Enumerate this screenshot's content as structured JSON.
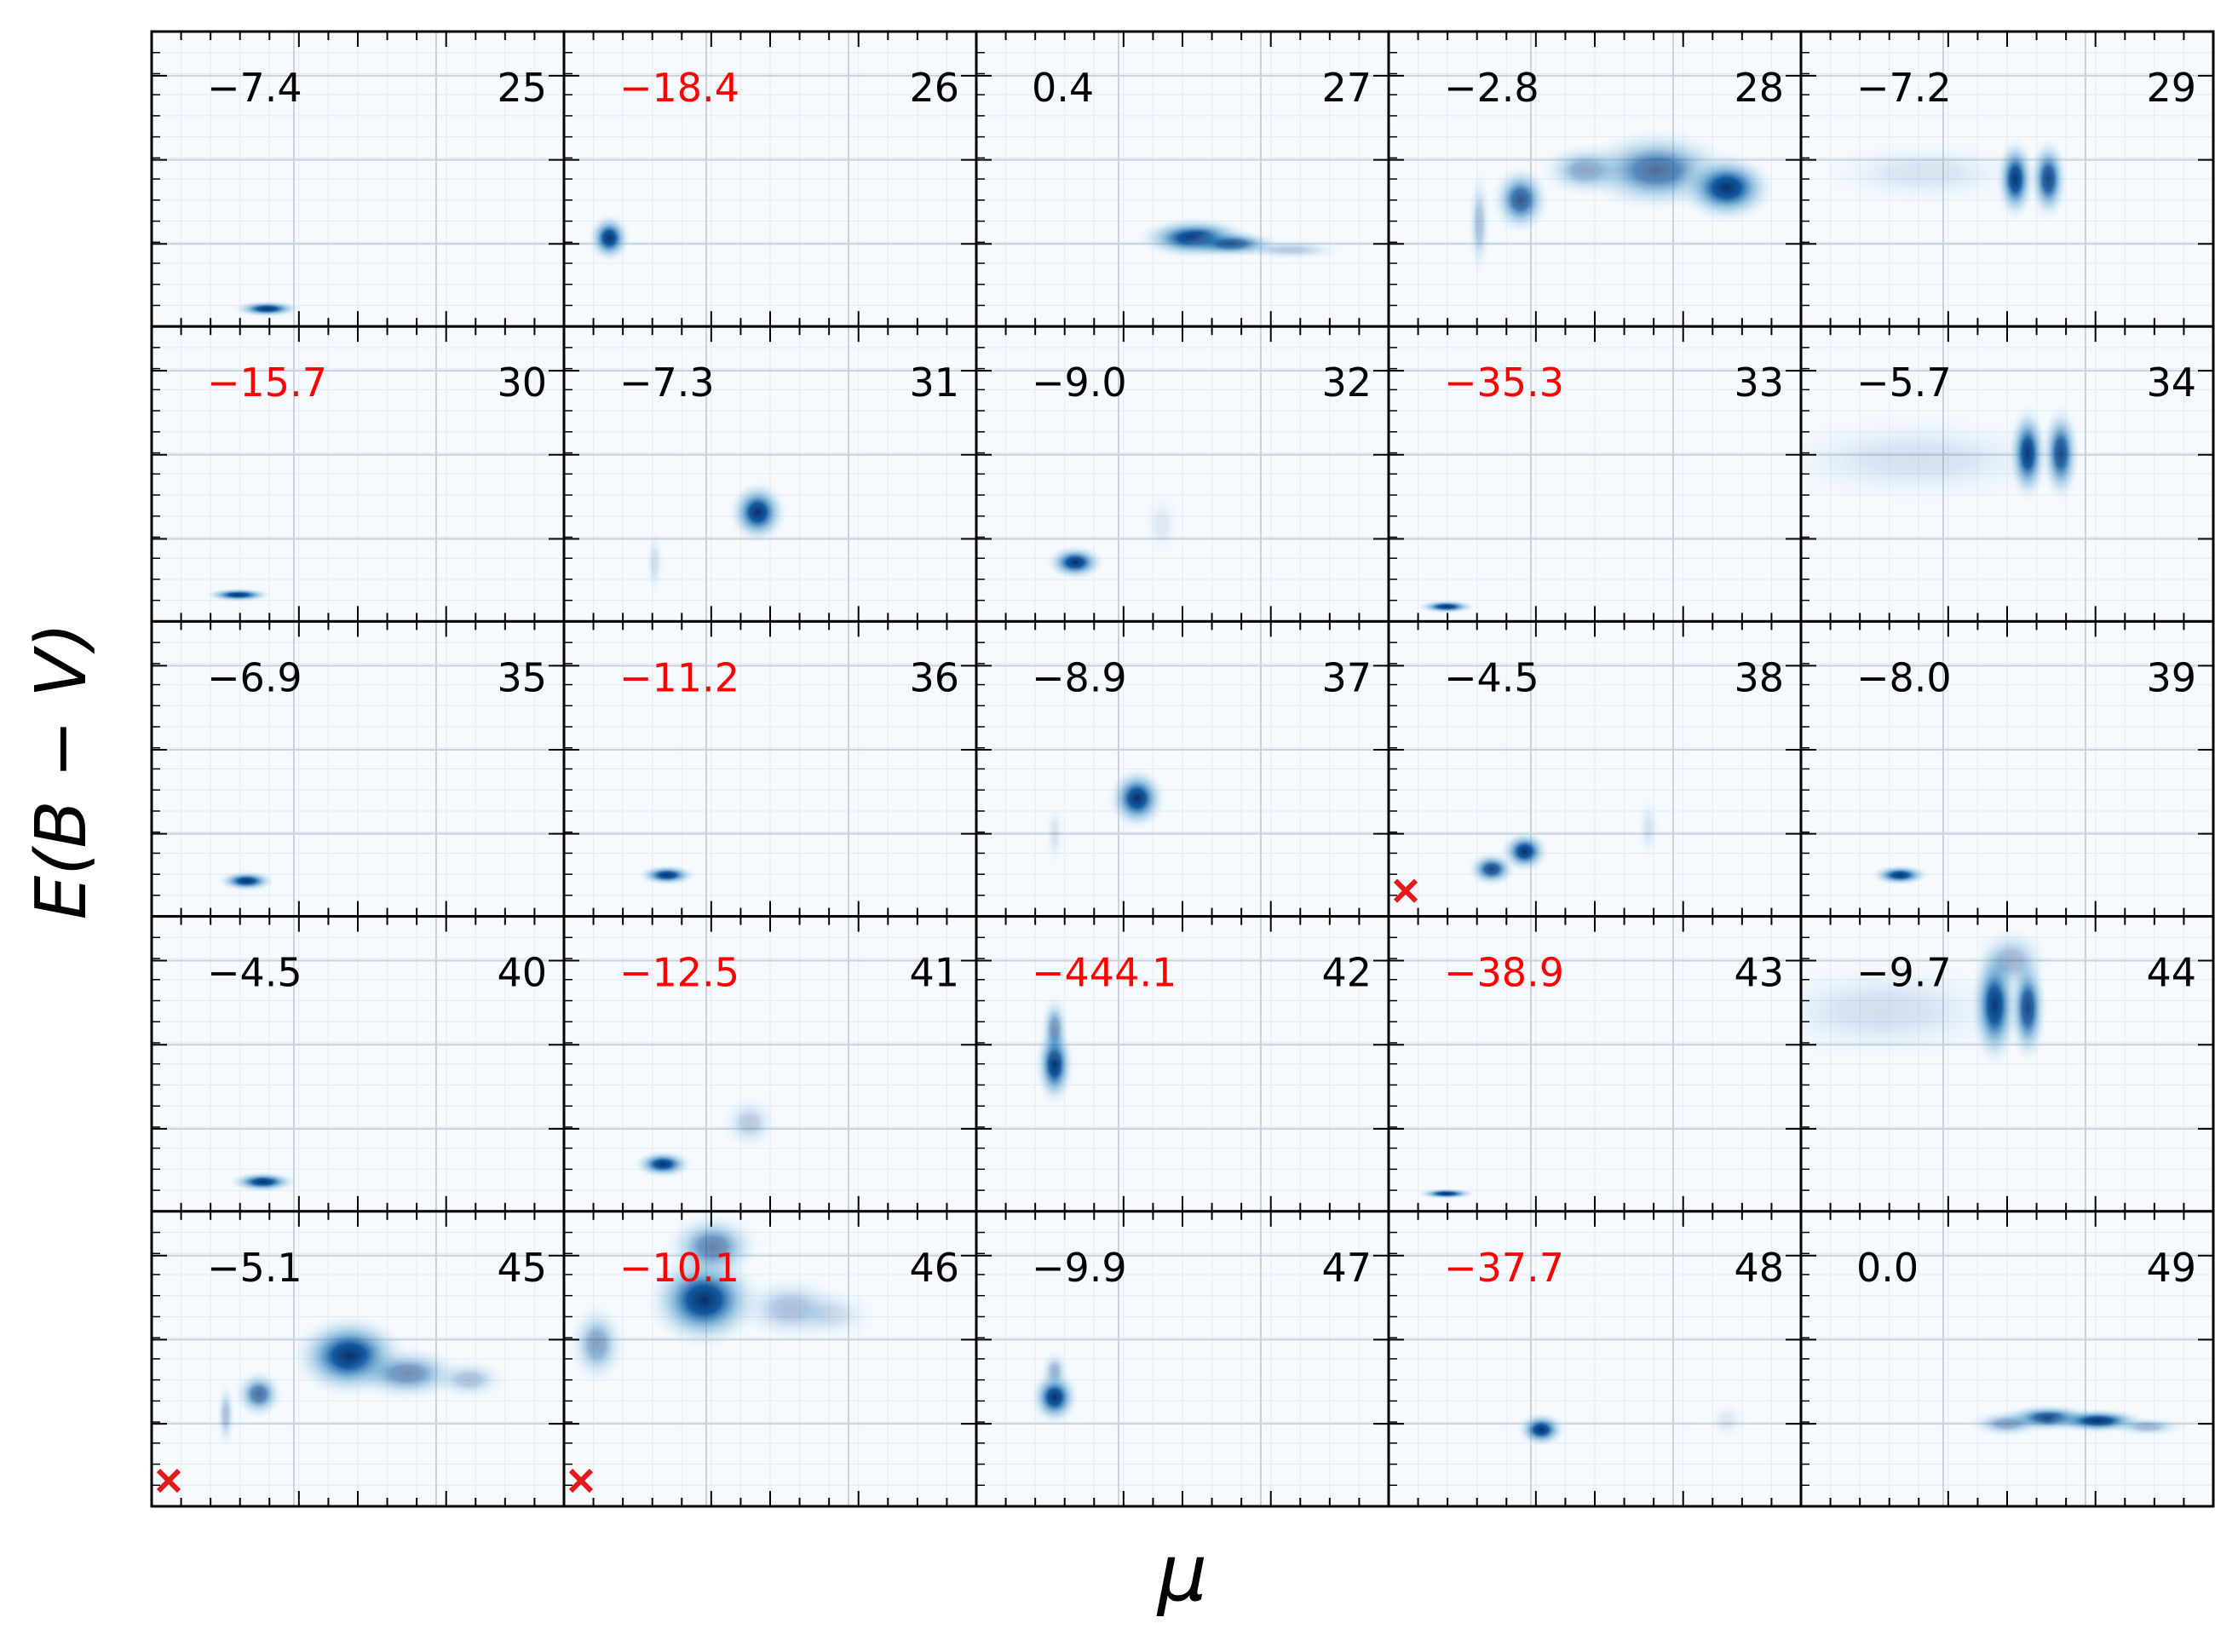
{
  "chart_data": {
    "type": "heatmap",
    "title": "",
    "xlabel": "μ",
    "ylabel": "E(B − V)",
    "grid": true,
    "colormap": "Blues",
    "colors": {
      "normal_value": "#000000",
      "flagged_value": "#ff0000",
      "marker": "#e31a1c"
    },
    "panels": [
      {
        "id": "25",
        "value": "−7.4",
        "flagged": false,
        "marker": false,
        "blobs": [
          {
            "x": 0.28,
            "y": 0.06,
            "sx": 0.035,
            "sy": 0.012,
            "w": 1.0
          }
        ]
      },
      {
        "id": "26",
        "value": "−18.4",
        "flagged": true,
        "marker": false,
        "blobs": [
          {
            "x": 0.11,
            "y": 0.3,
            "sx": 0.022,
            "sy": 0.035,
            "w": 1.0
          }
        ]
      },
      {
        "id": "27",
        "value": "0.4",
        "flagged": false,
        "marker": false,
        "blobs": [
          {
            "x": 0.53,
            "y": 0.3,
            "sx": 0.06,
            "sy": 0.03,
            "w": 1.0
          },
          {
            "x": 0.62,
            "y": 0.28,
            "sx": 0.05,
            "sy": 0.02,
            "w": 0.8
          },
          {
            "x": 0.76,
            "y": 0.26,
            "sx": 0.06,
            "sy": 0.015,
            "w": 0.25
          }
        ]
      },
      {
        "id": "28",
        "value": "−2.8",
        "flagged": false,
        "marker": false,
        "blobs": [
          {
            "x": 0.32,
            "y": 0.43,
            "sx": 0.03,
            "sy": 0.05,
            "w": 0.8
          },
          {
            "x": 0.48,
            "y": 0.53,
            "sx": 0.05,
            "sy": 0.04,
            "w": 0.45
          },
          {
            "x": 0.65,
            "y": 0.53,
            "sx": 0.08,
            "sy": 0.06,
            "w": 0.7
          },
          {
            "x": 0.82,
            "y": 0.47,
            "sx": 0.05,
            "sy": 0.05,
            "w": 1.0
          },
          {
            "x": 0.22,
            "y": 0.35,
            "sx": 0.012,
            "sy": 0.08,
            "w": 0.3
          }
        ]
      },
      {
        "id": "29",
        "value": "−7.2",
        "flagged": false,
        "marker": false,
        "blobs": [
          {
            "x": 0.52,
            "y": 0.5,
            "sx": 0.02,
            "sy": 0.06,
            "w": 1.0
          },
          {
            "x": 0.6,
            "y": 0.5,
            "sx": 0.02,
            "sy": 0.06,
            "w": 0.9
          },
          {
            "x": 0.3,
            "y": 0.52,
            "sx": 0.12,
            "sy": 0.05,
            "w": 0.12
          }
        ]
      },
      {
        "id": "30",
        "value": "−15.7",
        "flagged": true,
        "marker": false,
        "blobs": [
          {
            "x": 0.21,
            "y": 0.09,
            "sx": 0.035,
            "sy": 0.01,
            "w": 1.0
          }
        ]
      },
      {
        "id": "31",
        "value": "−7.3",
        "flagged": false,
        "marker": false,
        "blobs": [
          {
            "x": 0.47,
            "y": 0.37,
            "sx": 0.03,
            "sy": 0.045,
            "w": 1.0
          },
          {
            "x": 0.22,
            "y": 0.2,
            "sx": 0.01,
            "sy": 0.05,
            "w": 0.15
          }
        ]
      },
      {
        "id": "32",
        "value": "−9.0",
        "flagged": false,
        "marker": false,
        "blobs": [
          {
            "x": 0.24,
            "y": 0.2,
            "sx": 0.03,
            "sy": 0.025,
            "w": 1.0
          },
          {
            "x": 0.45,
            "y": 0.33,
            "sx": 0.02,
            "sy": 0.05,
            "w": 0.1
          }
        ]
      },
      {
        "id": "33",
        "value": "−35.3",
        "flagged": true,
        "marker": false,
        "blobs": [
          {
            "x": 0.14,
            "y": 0.05,
            "sx": 0.03,
            "sy": 0.01,
            "w": 1.0
          }
        ]
      },
      {
        "id": "34",
        "value": "−5.7",
        "flagged": false,
        "marker": false,
        "blobs": [
          {
            "x": 0.55,
            "y": 0.57,
            "sx": 0.02,
            "sy": 0.07,
            "w": 1.0
          },
          {
            "x": 0.63,
            "y": 0.57,
            "sx": 0.02,
            "sy": 0.07,
            "w": 0.9
          },
          {
            "x": 0.28,
            "y": 0.55,
            "sx": 0.18,
            "sy": 0.07,
            "w": 0.13
          }
        ]
      },
      {
        "id": "35",
        "value": "−6.9",
        "flagged": false,
        "marker": false,
        "blobs": [
          {
            "x": 0.23,
            "y": 0.12,
            "sx": 0.03,
            "sy": 0.015,
            "w": 1.0
          }
        ]
      },
      {
        "id": "36",
        "value": "−11.2",
        "flagged": true,
        "marker": false,
        "blobs": [
          {
            "x": 0.25,
            "y": 0.14,
            "sx": 0.03,
            "sy": 0.015,
            "w": 1.0
          }
        ]
      },
      {
        "id": "37",
        "value": "−8.9",
        "flagged": false,
        "marker": false,
        "blobs": [
          {
            "x": 0.39,
            "y": 0.4,
            "sx": 0.03,
            "sy": 0.045,
            "w": 1.0
          },
          {
            "x": 0.19,
            "y": 0.28,
            "sx": 0.01,
            "sy": 0.05,
            "w": 0.12
          }
        ]
      },
      {
        "id": "38",
        "value": "−4.5",
        "flagged": false,
        "marker": true,
        "blobs": [
          {
            "x": 0.25,
            "y": 0.16,
            "sx": 0.025,
            "sy": 0.025,
            "w": 0.9
          },
          {
            "x": 0.33,
            "y": 0.22,
            "sx": 0.025,
            "sy": 0.03,
            "w": 1.0
          },
          {
            "x": 0.63,
            "y": 0.3,
            "sx": 0.012,
            "sy": 0.05,
            "w": 0.12
          }
        ]
      },
      {
        "id": "39",
        "value": "−8.0",
        "flagged": false,
        "marker": false,
        "blobs": [
          {
            "x": 0.24,
            "y": 0.14,
            "sx": 0.03,
            "sy": 0.015,
            "w": 1.0
          }
        ]
      },
      {
        "id": "40",
        "value": "−4.5",
        "flagged": false,
        "marker": false,
        "blobs": [
          {
            "x": 0.27,
            "y": 0.1,
            "sx": 0.035,
            "sy": 0.015,
            "w": 1.0
          }
        ]
      },
      {
        "id": "41",
        "value": "−12.5",
        "flagged": true,
        "marker": false,
        "blobs": [
          {
            "x": 0.24,
            "y": 0.16,
            "sx": 0.03,
            "sy": 0.02,
            "w": 1.0
          },
          {
            "x": 0.45,
            "y": 0.3,
            "sx": 0.03,
            "sy": 0.04,
            "w": 0.25
          }
        ]
      },
      {
        "id": "42",
        "value": "−444.1",
        "flagged": true,
        "marker": false,
        "blobs": [
          {
            "x": 0.19,
            "y": 0.5,
            "sx": 0.02,
            "sy": 0.06,
            "w": 1.0
          },
          {
            "x": 0.19,
            "y": 0.62,
            "sx": 0.015,
            "sy": 0.05,
            "w": 0.5
          }
        ]
      },
      {
        "id": "43",
        "value": "−38.9",
        "flagged": true,
        "marker": false,
        "blobs": [
          {
            "x": 0.14,
            "y": 0.06,
            "sx": 0.03,
            "sy": 0.008,
            "w": 1.0
          }
        ]
      },
      {
        "id": "44",
        "value": "−9.7",
        "flagged": false,
        "marker": false,
        "blobs": [
          {
            "x": 0.47,
            "y": 0.7,
            "sx": 0.025,
            "sy": 0.09,
            "w": 1.0
          },
          {
            "x": 0.55,
            "y": 0.69,
            "sx": 0.02,
            "sy": 0.08,
            "w": 0.9
          },
          {
            "x": 0.2,
            "y": 0.68,
            "sx": 0.16,
            "sy": 0.08,
            "w": 0.14
          },
          {
            "x": 0.51,
            "y": 0.85,
            "sx": 0.04,
            "sy": 0.05,
            "w": 0.35
          }
        ]
      },
      {
        "id": "45",
        "value": "−5.1",
        "flagged": false,
        "marker": true,
        "blobs": [
          {
            "x": 0.26,
            "y": 0.38,
            "sx": 0.025,
            "sy": 0.035,
            "w": 0.7
          },
          {
            "x": 0.48,
            "y": 0.51,
            "sx": 0.06,
            "sy": 0.06,
            "w": 1.0
          },
          {
            "x": 0.62,
            "y": 0.45,
            "sx": 0.06,
            "sy": 0.04,
            "w": 0.55
          },
          {
            "x": 0.77,
            "y": 0.43,
            "sx": 0.04,
            "sy": 0.03,
            "w": 0.3
          },
          {
            "x": 0.18,
            "y": 0.31,
            "sx": 0.01,
            "sy": 0.05,
            "w": 0.3
          }
        ]
      },
      {
        "id": "46",
        "value": "−10.1",
        "flagged": true,
        "marker": true,
        "blobs": [
          {
            "x": 0.34,
            "y": 0.7,
            "sx": 0.06,
            "sy": 0.07,
            "w": 1.0
          },
          {
            "x": 0.36,
            "y": 0.88,
            "sx": 0.05,
            "sy": 0.05,
            "w": 0.6
          },
          {
            "x": 0.08,
            "y": 0.55,
            "sx": 0.03,
            "sy": 0.06,
            "w": 0.45
          },
          {
            "x": 0.55,
            "y": 0.67,
            "sx": 0.06,
            "sy": 0.05,
            "w": 0.3
          },
          {
            "x": 0.65,
            "y": 0.65,
            "sx": 0.05,
            "sy": 0.04,
            "w": 0.15
          }
        ]
      },
      {
        "id": "47",
        "value": "−9.9",
        "flagged": false,
        "marker": false,
        "blobs": [
          {
            "x": 0.19,
            "y": 0.37,
            "sx": 0.025,
            "sy": 0.04,
            "w": 1.0
          },
          {
            "x": 0.19,
            "y": 0.46,
            "sx": 0.015,
            "sy": 0.03,
            "w": 0.35
          }
        ]
      },
      {
        "id": "48",
        "value": "−37.7",
        "flagged": true,
        "marker": false,
        "blobs": [
          {
            "x": 0.37,
            "y": 0.26,
            "sx": 0.025,
            "sy": 0.025,
            "w": 1.0
          },
          {
            "x": 0.82,
            "y": 0.29,
            "sx": 0.02,
            "sy": 0.03,
            "w": 0.1
          }
        ]
      },
      {
        "id": "49",
        "value": "0.0",
        "flagged": false,
        "marker": false,
        "blobs": [
          {
            "x": 0.6,
            "y": 0.3,
            "sx": 0.05,
            "sy": 0.02,
            "w": 0.9
          },
          {
            "x": 0.72,
            "y": 0.29,
            "sx": 0.05,
            "sy": 0.018,
            "w": 1.0
          },
          {
            "x": 0.5,
            "y": 0.28,
            "sx": 0.04,
            "sy": 0.02,
            "w": 0.45
          },
          {
            "x": 0.84,
            "y": 0.27,
            "sx": 0.04,
            "sy": 0.015,
            "w": 0.35
          }
        ]
      }
    ]
  }
}
